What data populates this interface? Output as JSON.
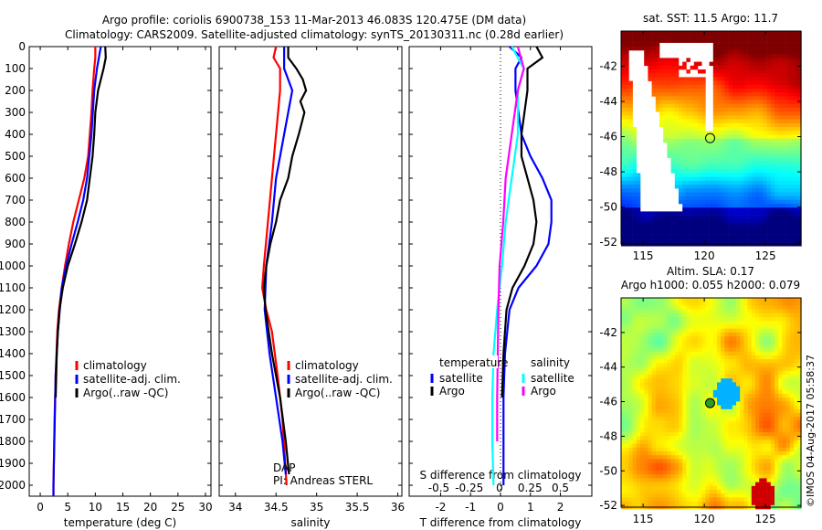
{
  "title_line1": "Argo profile: coriolis 6900738_153 11-Mar-2013 46.083S 120.475E (DM data)",
  "title_line2": "Climatology: CARS2009. Satellite-adjusted climatology: synTS_20130311.nc (0.28d earlier)",
  "colors": {
    "climatology": "#ff0000",
    "satellite": "#0000ff",
    "argo": "#000000",
    "sal_satellite": "#00ffff",
    "sal_argo": "#ff00ff"
  },
  "watermark": "©IMOS 04-Aug-2017 05:58:37",
  "chart_data": [
    {
      "type": "line",
      "xlabel": "temperature (deg C)",
      "xlim": [
        -2,
        31
      ],
      "ylim": [
        2050,
        0
      ],
      "xticks": [
        0,
        5,
        10,
        15,
        20,
        25,
        30
      ],
      "yticks": [
        0,
        100,
        200,
        300,
        400,
        500,
        600,
        700,
        800,
        900,
        1000,
        1100,
        1200,
        1300,
        1400,
        1500,
        1600,
        1700,
        1800,
        1900,
        2000
      ],
      "legend": [
        "climatology",
        "satellite-adj. clim.",
        "Argo(..raw -QC)"
      ],
      "series": [
        {
          "name": "climatology",
          "depth": [
            0,
            50,
            100,
            200,
            300,
            400,
            500,
            600,
            700,
            800,
            900,
            1000,
            1100,
            1200,
            1300,
            1500,
            1700,
            2000,
            2050
          ],
          "values": [
            10,
            10,
            9.8,
            9.5,
            9.3,
            9,
            8.7,
            8,
            7,
            6,
            5.2,
            4.5,
            3.9,
            3.4,
            3.1,
            2.8,
            2.6,
            2.4,
            2.4
          ]
        },
        {
          "name": "satellite-adj. clim.",
          "depth": [
            0,
            100,
            200,
            400,
            600,
            700,
            800,
            900,
            1000,
            1100,
            1300,
            1500,
            2000,
            2050
          ],
          "values": [
            11,
            10.3,
            9.8,
            9.3,
            8.5,
            7.8,
            6.8,
            5.7,
            4.7,
            3.9,
            3.2,
            2.8,
            2.4,
            2.4
          ]
        },
        {
          "name": "Argo",
          "depth": [
            0,
            50,
            100,
            200,
            300,
            400,
            500,
            600,
            700,
            800,
            900,
            1000,
            1100,
            1200,
            1300,
            1400,
            1500,
            1600
          ],
          "values": [
            11.8,
            11.9,
            11.5,
            10.5,
            10,
            9.8,
            9.5,
            9,
            8.5,
            7.5,
            6.3,
            5,
            4.1,
            3.5,
            3.2,
            3,
            2.9,
            2.8
          ]
        }
      ]
    },
    {
      "type": "line",
      "xlabel": "salinity",
      "xlim": [
        33.8,
        36.05
      ],
      "ylim": [
        2050,
        0
      ],
      "xticks": [
        34,
        34.5,
        35,
        35.5,
        36
      ],
      "legend": [
        "climatology",
        "satellite-adj. clim.",
        "Argo(..raw -QC)"
      ],
      "annotation": [
        "DAP",
        "PI: Andreas STERL"
      ],
      "series": [
        {
          "name": "climatology",
          "depth": [
            0,
            50,
            100,
            200,
            400,
            600,
            800,
            1000,
            1100,
            1200,
            1300,
            1500,
            1700,
            2000
          ],
          "values": [
            34.5,
            34.47,
            34.55,
            34.55,
            34.5,
            34.45,
            34.4,
            34.35,
            34.33,
            34.38,
            34.45,
            34.52,
            34.58,
            34.63
          ]
        },
        {
          "name": "satellite-adj. clim.",
          "depth": [
            0,
            100,
            150,
            200,
            400,
            600,
            800,
            1000,
            1200,
            1400,
            1600,
            1800,
            1950
          ],
          "values": [
            34.6,
            34.6,
            34.65,
            34.7,
            34.6,
            34.5,
            34.45,
            34.38,
            34.36,
            34.42,
            34.5,
            34.58,
            34.62
          ]
        },
        {
          "name": "Argo",
          "depth": [
            0,
            50,
            100,
            150,
            200,
            250,
            300,
            400,
            500,
            600,
            700,
            800,
            900,
            1000,
            1100,
            1200,
            1400,
            1600,
            1800,
            1950
          ],
          "values": [
            34.65,
            34.65,
            34.75,
            34.83,
            34.87,
            34.8,
            34.85,
            34.78,
            34.7,
            34.65,
            34.55,
            34.5,
            34.43,
            34.38,
            34.35,
            34.37,
            34.45,
            34.55,
            34.62,
            34.66
          ]
        }
      ]
    },
    {
      "type": "line",
      "xlabel": "T difference from climatology",
      "xlabel2": "S difference from climatology",
      "xlim": [
        -3.05,
        3.05
      ],
      "ylim": [
        2050,
        0
      ],
      "xticks": [
        -2,
        -1,
        0,
        1,
        2
      ],
      "xticks2": [
        -0.5,
        -0.25,
        0,
        0.25,
        0.5
      ],
      "xticks2_labels": [
        "-0.5",
        "-0.25",
        "0",
        "0.25",
        "0.5"
      ],
      "legend_temperature": [
        "temperature",
        "satellite",
        "Argo"
      ],
      "legend_salinity": [
        "salinity",
        "satellite",
        "Argo"
      ],
      "series": [
        {
          "name": "temperature satellite",
          "units": "T",
          "depth": [
            0,
            50,
            100,
            200,
            300,
            400,
            500,
            600,
            700,
            800,
            900,
            1000,
            1100,
            1200,
            1400,
            1600,
            2000
          ],
          "values": [
            0.3,
            0.7,
            0.5,
            0.5,
            0.6,
            0.7,
            1.0,
            1.4,
            1.7,
            1.7,
            1.6,
            1.2,
            0.6,
            0.3,
            0.15,
            0.1,
            0.1
          ]
        },
        {
          "name": "temperature Argo",
          "units": "T",
          "depth": [
            0,
            50,
            100,
            200,
            300,
            400,
            500,
            600,
            700,
            800,
            900,
            1000,
            1100,
            1200,
            1400,
            1600
          ],
          "values": [
            1.2,
            1.4,
            0.9,
            0.9,
            0.8,
            0.7,
            0.7,
            0.9,
            1.1,
            1.2,
            1.1,
            0.8,
            0.4,
            0.2,
            0.1,
            0.05
          ]
        },
        {
          "name": "salinity satellite",
          "units": "S",
          "depth": [
            0,
            100,
            200,
            400,
            600,
            800,
            1000,
            1200,
            1400,
            1600,
            1800,
            2000
          ],
          "values": [
            0.1,
            0.2,
            0.15,
            0.15,
            0.1,
            0.05,
            0.02,
            -0.02,
            -0.05,
            -0.06,
            -0.06,
            -0.05
          ]
        },
        {
          "name": "salinity Argo",
          "units": "S",
          "depth": [
            0,
            100,
            200,
            400,
            600,
            800,
            1000,
            1200,
            1600,
            1800
          ],
          "values": [
            0.15,
            0.2,
            0.15,
            0.1,
            0.05,
            0.03,
            0,
            -0.01,
            -0.02,
            -0.02
          ]
        }
      ]
    },
    {
      "type": "heatmap",
      "title": "sat. SST: 11.5 Argo: 11.7",
      "xlim": [
        113.2,
        127.9
      ],
      "ylim": [
        -52.1,
        -40
      ],
      "xticks": [
        115,
        120,
        125
      ],
      "yticks": [
        -42,
        -44,
        -46,
        -48,
        -50,
        -52
      ],
      "marker": {
        "lon": 120.475,
        "lat": -46.083
      }
    },
    {
      "type": "heatmap",
      "title": "Altim. SLA: 0.17",
      "subtitle": "Argo h1000: 0.055 h2000: 0.079",
      "xlim": [
        113.2,
        127.9
      ],
      "ylim": [
        -52.1,
        -40
      ],
      "xticks": [
        115,
        120,
        125
      ],
      "yticks": [
        -42,
        -44,
        -46,
        -48,
        -50,
        -52
      ],
      "marker": {
        "lon": 120.475,
        "lat": -46.083
      }
    }
  ]
}
